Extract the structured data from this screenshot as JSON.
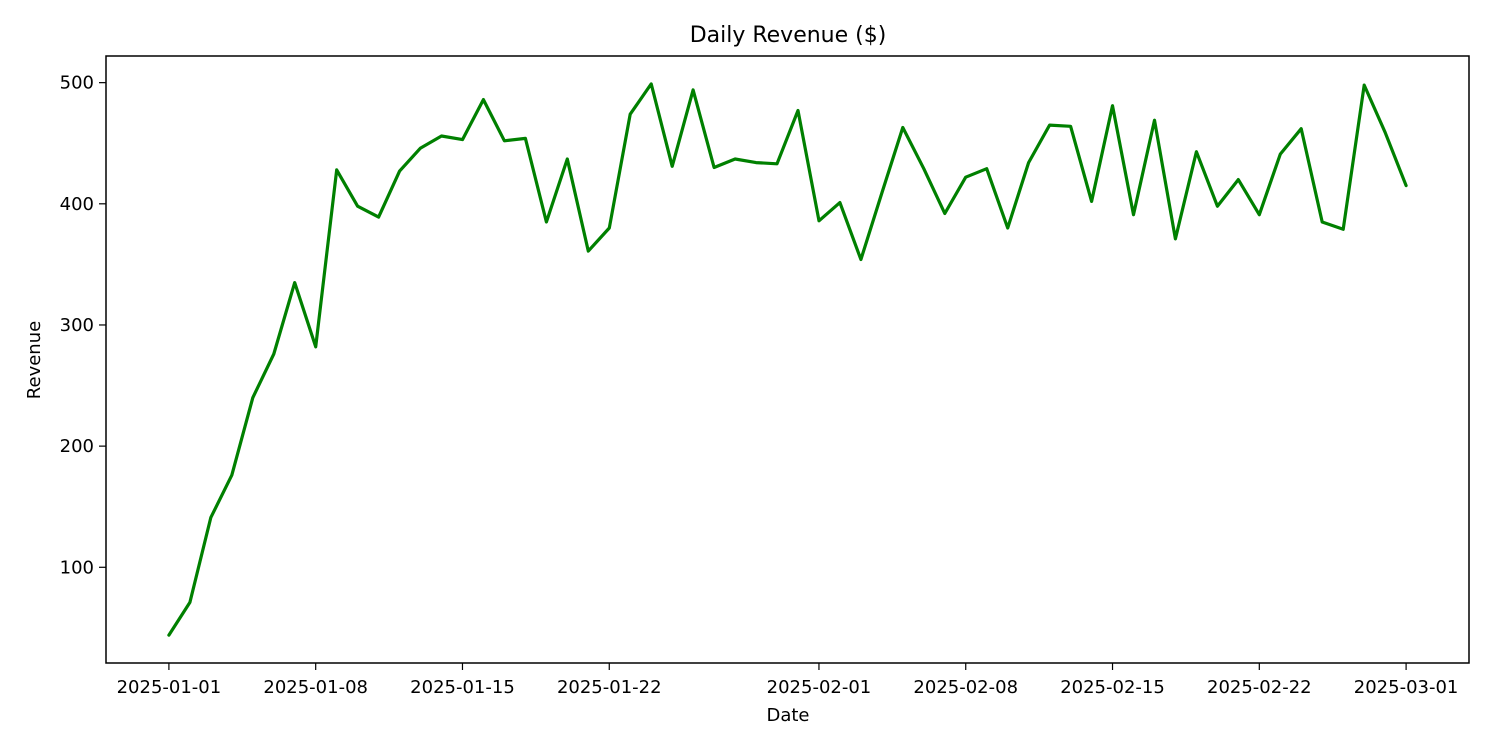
{
  "chart_data": {
    "type": "line",
    "title": "Daily Revenue ($)",
    "xlabel": "Date",
    "ylabel": "Revenue",
    "x_tick_labels": [
      "2025-01-01",
      "2025-01-08",
      "2025-01-15",
      "2025-01-22",
      "2025-02-01",
      "2025-02-08",
      "2025-02-15",
      "2025-02-22",
      "2025-03-01"
    ],
    "y_ticks": [
      100,
      200,
      300,
      400,
      500
    ],
    "xlim": [
      "2024-12-29",
      "2025-03-04"
    ],
    "ylim": [
      21,
      522
    ],
    "grid": false,
    "legend": "none",
    "series": [
      {
        "color": "#008000",
        "x": [
          "2025-01-01",
          "2025-01-02",
          "2025-01-03",
          "2025-01-04",
          "2025-01-05",
          "2025-01-06",
          "2025-01-07",
          "2025-01-08",
          "2025-01-09",
          "2025-01-10",
          "2025-01-11",
          "2025-01-12",
          "2025-01-13",
          "2025-01-14",
          "2025-01-15",
          "2025-01-16",
          "2025-01-17",
          "2025-01-18",
          "2025-01-19",
          "2025-01-20",
          "2025-01-21",
          "2025-01-22",
          "2025-01-23",
          "2025-01-24",
          "2025-01-25",
          "2025-01-26",
          "2025-01-27",
          "2025-01-28",
          "2025-01-29",
          "2025-01-30",
          "2025-01-31",
          "2025-02-01",
          "2025-02-02",
          "2025-02-03",
          "2025-02-04",
          "2025-02-05",
          "2025-02-06",
          "2025-02-07",
          "2025-02-08",
          "2025-02-09",
          "2025-02-10",
          "2025-02-11",
          "2025-02-12",
          "2025-02-13",
          "2025-02-14",
          "2025-02-15",
          "2025-02-16",
          "2025-02-17",
          "2025-02-18",
          "2025-02-19",
          "2025-02-20",
          "2025-02-21",
          "2025-02-22",
          "2025-02-23",
          "2025-02-24",
          "2025-02-25",
          "2025-02-26",
          "2025-02-27",
          "2025-02-28",
          "2025-03-01"
        ],
        "values": [
          44,
          71,
          141,
          176,
          240,
          276,
          335,
          282,
          428,
          398,
          389,
          427,
          446,
          456,
          453,
          486,
          452,
          454,
          385,
          437,
          361,
          380,
          474,
          499,
          431,
          494,
          430,
          437,
          434,
          433,
          477,
          386,
          401,
          354,
          409,
          463,
          429,
          392,
          422,
          429,
          380,
          434,
          465,
          464,
          402,
          481,
          391,
          469,
          371,
          443,
          398,
          420,
          391,
          441,
          462,
          385,
          379,
          498,
          459,
          415
        ]
      }
    ]
  }
}
